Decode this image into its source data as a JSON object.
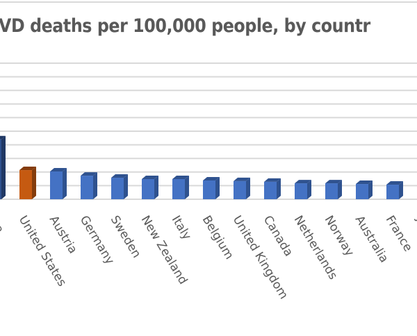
{
  "chart_data": {
    "type": "bar",
    "title": "VD deaths per 100,000 people, by countr",
    "xlabel": "",
    "ylabel": "",
    "grid": true,
    "ylim": [
      0,
      10.2
    ],
    "value_units": "gridline intervals (axis labels not visible)",
    "categories": [
      "ina",
      "United States",
      "Austria",
      "Germany",
      "Sweden",
      "New Zealand",
      "Italy",
      "Belgium",
      "United Kingdom",
      "Canada",
      "Netherlands",
      "Norway",
      "Australia",
      "France",
      "J"
    ],
    "values": [
      4.4,
      2.14,
      2.04,
      1.73,
      1.58,
      1.48,
      1.48,
      1.38,
      1.33,
      1.28,
      1.17,
      1.17,
      1.12,
      1.07,
      0.97
    ],
    "colors": {
      "default": "#4472c4",
      "default_side": "#2f528f",
      "highlight": "#c55a11",
      "highlight_side": "#843c0c",
      "first": "#2f528f",
      "grid": "#d9d9d9"
    },
    "highlight_index": 1
  }
}
